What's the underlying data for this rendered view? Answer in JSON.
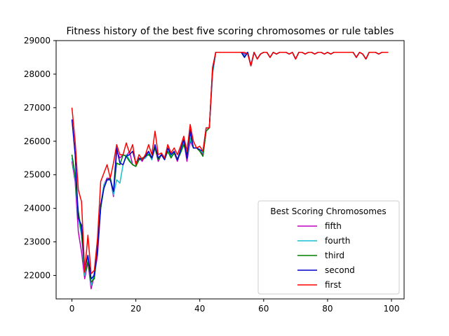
{
  "chart_data": {
    "type": "line",
    "title": "Fitness history of the best five scoring chromosomes or rule tables",
    "xlabel": "",
    "ylabel": "",
    "xlim": [
      -4.95,
      103.95
    ],
    "ylim": [
      21300,
      29000
    ],
    "xticks": [
      0,
      20,
      40,
      60,
      80,
      100
    ],
    "yticks": [
      22000,
      23000,
      24000,
      25000,
      26000,
      27000,
      28000,
      29000
    ],
    "grid": false,
    "legend": {
      "title": "Best Scoring Chromosomes",
      "placement": "lower-right"
    },
    "x": [
      0,
      1,
      2,
      3,
      4,
      5,
      6,
      7,
      8,
      9,
      10,
      11,
      12,
      13,
      14,
      15,
      16,
      17,
      18,
      19,
      20,
      21,
      22,
      23,
      24,
      25,
      26,
      27,
      28,
      29,
      30,
      31,
      32,
      33,
      34,
      35,
      36,
      37,
      38,
      39,
      40,
      41,
      42,
      43,
      44,
      45,
      46,
      47,
      48,
      49,
      50,
      51,
      52,
      53,
      54,
      55,
      56,
      57,
      58,
      59,
      60,
      61,
      62,
      63,
      64,
      65,
      66,
      67,
      68,
      69,
      70,
      71,
      72,
      73,
      74,
      75,
      76,
      77,
      78,
      79,
      80,
      81,
      82,
      83,
      84,
      85,
      86,
      87,
      88,
      89,
      90,
      91,
      92,
      93,
      94,
      95,
      96,
      97,
      98,
      99
    ],
    "series": [
      {
        "name": "fifth",
        "color": "#bf00bf",
        "values": [
          25400,
          24800,
          23300,
          22700,
          21900,
          22400,
          21600,
          22000,
          22600,
          24000,
          24700,
          24900,
          24900,
          24350,
          25700,
          25500,
          25600,
          25550,
          25700,
          25300,
          25250,
          25500,
          25400,
          25600,
          25700,
          25450,
          25800,
          25400,
          25600,
          25450,
          25800,
          25550,
          25650,
          25400,
          25700,
          26000,
          25400,
          26000,
          25800,
          25800,
          25750,
          25600,
          26300,
          26400,
          28000,
          28650,
          28650,
          28650,
          28650,
          28650,
          28650,
          28650,
          28650,
          28650,
          28600,
          28650,
          28250,
          28650,
          28450,
          28600,
          28650,
          28650,
          28500,
          28650,
          28600,
          28650,
          28650,
          28650,
          28600,
          28650,
          28450,
          28650,
          28650,
          28600,
          28650,
          28650,
          28600,
          28650,
          28650,
          28600,
          28650,
          28600,
          28650,
          28650,
          28650,
          28650,
          28650,
          28650,
          28650,
          28500,
          28650,
          28600,
          28450,
          28650,
          28650,
          28650,
          28600,
          28650,
          28650,
          28650
        ]
      },
      {
        "name": "fourth",
        "color": "#17becf",
        "values": [
          25500,
          24900,
          23700,
          23200,
          22000,
          22500,
          21700,
          22100,
          22900,
          24100,
          24700,
          24850,
          24900,
          24400,
          24850,
          24750,
          25300,
          25600,
          25450,
          25300,
          25250,
          25450,
          25450,
          25500,
          25650,
          25450,
          25850,
          25450,
          25600,
          25450,
          25800,
          25550,
          25700,
          25450,
          25700,
          26000,
          25500,
          26100,
          25800,
          25800,
          25750,
          25650,
          26300,
          26400,
          28000,
          28650,
          28650,
          28650,
          28650,
          28650,
          28650,
          28650,
          28650,
          28650,
          28550,
          28650,
          28250,
          28650,
          28450,
          28600,
          28650,
          28650,
          28500,
          28650,
          28600,
          28650,
          28650,
          28650,
          28600,
          28650,
          28450,
          28650,
          28650,
          28600,
          28650,
          28650,
          28600,
          28650,
          28650,
          28600,
          28650,
          28600,
          28650,
          28650,
          28650,
          28650,
          28650,
          28650,
          28650,
          28500,
          28650,
          28600,
          28450,
          28650,
          28650,
          28650,
          28600,
          28650,
          28650,
          28650
        ]
      },
      {
        "name": "third",
        "color": "#008000",
        "values": [
          25600,
          25000,
          23900,
          23300,
          22100,
          22400,
          21800,
          21900,
          22800,
          24000,
          24600,
          24850,
          24900,
          24500,
          25350,
          25300,
          25600,
          25550,
          25400,
          25300,
          25250,
          25450,
          25500,
          25550,
          25600,
          25500,
          25800,
          25450,
          25600,
          25450,
          25700,
          25500,
          25650,
          25450,
          25650,
          25900,
          25600,
          26250,
          25800,
          25800,
          25700,
          25550,
          26300,
          26400,
          28100,
          28650,
          28650,
          28650,
          28650,
          28650,
          28650,
          28650,
          28650,
          28650,
          28500,
          28650,
          28250,
          28650,
          28450,
          28600,
          28650,
          28650,
          28500,
          28650,
          28600,
          28650,
          28650,
          28650,
          28600,
          28650,
          28450,
          28650,
          28650,
          28600,
          28650,
          28650,
          28600,
          28650,
          28650,
          28600,
          28650,
          28600,
          28650,
          28650,
          28650,
          28650,
          28650,
          28650,
          28650,
          28500,
          28650,
          28600,
          28450,
          28650,
          28650,
          28650,
          28600,
          28650,
          28650,
          28650
        ]
      },
      {
        "name": "second",
        "color": "#0000cc",
        "values": [
          26650,
          25600,
          23700,
          23500,
          22200,
          22600,
          21900,
          22000,
          22800,
          24100,
          24600,
          24850,
          24850,
          24500,
          25800,
          25350,
          25300,
          25550,
          25600,
          25700,
          25350,
          25500,
          25450,
          25550,
          25700,
          25500,
          25900,
          25500,
          25600,
          25450,
          25800,
          25600,
          25700,
          25450,
          25750,
          26050,
          25500,
          26350,
          25800,
          25800,
          25750,
          25700,
          26400,
          26400,
          28150,
          28650,
          28650,
          28650,
          28650,
          28650,
          28650,
          28650,
          28650,
          28650,
          28500,
          28650,
          28250,
          28650,
          28450,
          28600,
          28650,
          28650,
          28500,
          28650,
          28600,
          28650,
          28650,
          28650,
          28600,
          28650,
          28450,
          28650,
          28650,
          28600,
          28650,
          28650,
          28600,
          28650,
          28650,
          28600,
          28650,
          28600,
          28650,
          28650,
          28650,
          28650,
          28650,
          28650,
          28650,
          28500,
          28650,
          28600,
          28450,
          28650,
          28650,
          28650,
          28600,
          28650,
          28650,
          28650
        ]
      },
      {
        "name": "first",
        "color": "#ff0000",
        "values": [
          27000,
          26000,
          24550,
          24200,
          22100,
          23200,
          22050,
          22150,
          23100,
          24800,
          25050,
          25300,
          24900,
          25350,
          25900,
          25600,
          25600,
          25950,
          25650,
          25900,
          25300,
          25600,
          25450,
          25600,
          25900,
          25600,
          26300,
          25600,
          25650,
          25500,
          25900,
          25650,
          25800,
          25600,
          25850,
          26150,
          25700,
          26500,
          26000,
          25800,
          25850,
          25700,
          26400,
          26400,
          28200,
          28650,
          28650,
          28650,
          28650,
          28650,
          28650,
          28650,
          28650,
          28650,
          28650,
          28600,
          28250,
          28650,
          28450,
          28600,
          28650,
          28650,
          28500,
          28650,
          28600,
          28650,
          28650,
          28650,
          28600,
          28650,
          28450,
          28650,
          28650,
          28600,
          28650,
          28650,
          28600,
          28650,
          28650,
          28600,
          28650,
          28600,
          28650,
          28650,
          28650,
          28650,
          28650,
          28650,
          28650,
          28500,
          28650,
          28600,
          28450,
          28650,
          28650,
          28650,
          28600,
          28650,
          28650,
          28650
        ]
      }
    ]
  }
}
